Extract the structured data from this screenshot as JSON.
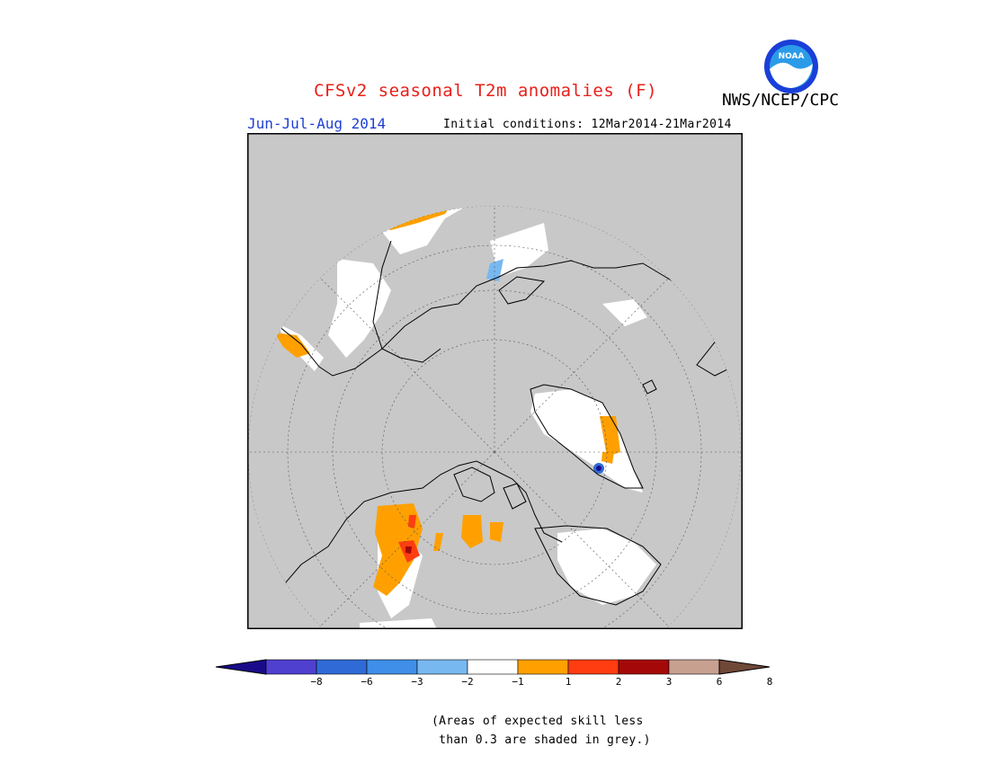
{
  "header": {
    "title": "CFSv2 seasonal T2m anomalies (F)",
    "agency": "NWS/NCEP/CPC",
    "period": "Jun-Jul-Aug 2014",
    "initial_conditions": "Initial conditions: 12Mar2014-21Mar2014"
  },
  "logo": {
    "text": "NOAA",
    "icon": "noaa-logo-icon",
    "colors": {
      "ring": "#1a3fd8",
      "sky": "#2b9be8",
      "bird": "#ffffff"
    }
  },
  "map": {
    "projection": "north polar stereographic",
    "background_color": "#c8c8c8",
    "frame_color": "#000000"
  },
  "legend": {
    "ticks": [
      "−8",
      "−6",
      "−3",
      "−2",
      "−1",
      "1",
      "2",
      "3",
      "6",
      "8"
    ],
    "colors": [
      "#1a0b8a",
      "#5040d0",
      "#2f6bd6",
      "#3f8ee8",
      "#78b8f0",
      "#ffffff",
      "#ffa000",
      "#ff3d10",
      "#a50808",
      "#c8a090",
      "#704838"
    ]
  },
  "note": "(Areas of expected skill less\n than 0.3 are shaded in grey.)"
}
